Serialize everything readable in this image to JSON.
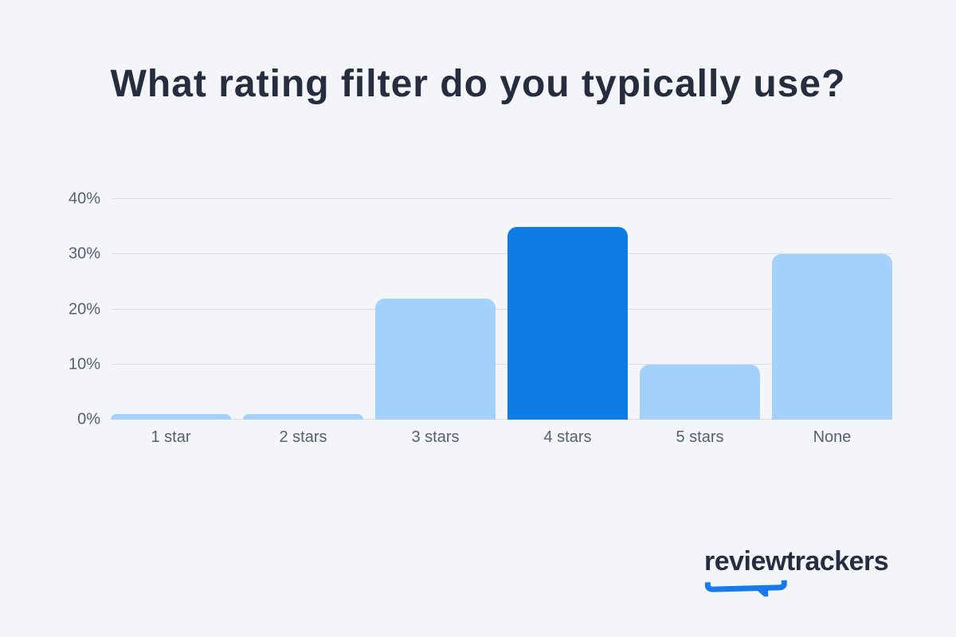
{
  "title": "What rating filter do you typically use?",
  "chart_data": {
    "type": "bar",
    "title": "What rating filter do you typically use?",
    "categories": [
      "1 star",
      "2 stars",
      "3 stars",
      "4 stars",
      "5 stars",
      "None"
    ],
    "values": [
      1,
      1,
      22,
      35,
      10,
      30
    ],
    "unit": "%",
    "ylim": [
      0,
      40
    ],
    "yticks": [
      0,
      10,
      20,
      30,
      40
    ],
    "ytick_labels": [
      "0%",
      "10%",
      "20%",
      "30%",
      "40%"
    ],
    "grid": true,
    "legend": false,
    "highlight_index": 3,
    "bar_color": "#a4d1fb",
    "highlight_color": "#0d7ce6"
  },
  "logo": {
    "text": "reviewtrackers",
    "accent_color": "#1879e9"
  }
}
